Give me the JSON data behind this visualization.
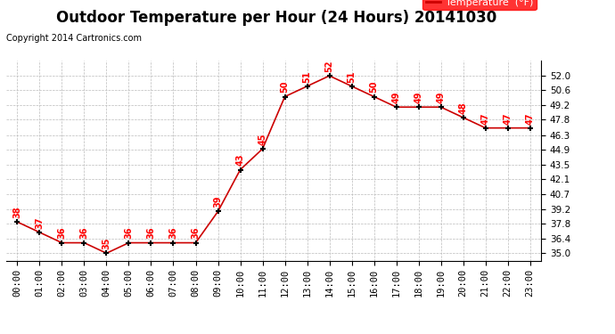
{
  "title": "Outdoor Temperature per Hour (24 Hours) 20141030",
  "copyright": "Copyright 2014 Cartronics.com",
  "legend_label": "Temperature  (°F)",
  "hours": [
    0,
    1,
    2,
    3,
    4,
    5,
    6,
    7,
    8,
    9,
    10,
    11,
    12,
    13,
    14,
    15,
    16,
    17,
    18,
    19,
    20,
    21,
    22,
    23
  ],
  "temps": [
    38,
    37,
    36,
    36,
    35,
    36,
    36,
    36,
    36,
    39,
    43,
    45,
    50,
    51,
    52,
    51,
    50,
    49,
    49,
    49,
    48,
    47,
    47,
    47
  ],
  "x_labels": [
    "00:00",
    "01:00",
    "02:00",
    "03:00",
    "04:00",
    "05:00",
    "06:00",
    "07:00",
    "08:00",
    "09:00",
    "10:00",
    "11:00",
    "12:00",
    "13:00",
    "14:00",
    "15:00",
    "16:00",
    "17:00",
    "18:00",
    "19:00",
    "20:00",
    "21:00",
    "22:00",
    "23:00"
  ],
  "yticks": [
    35.0,
    36.4,
    37.8,
    39.2,
    40.7,
    42.1,
    43.5,
    44.9,
    46.3,
    47.8,
    49.2,
    50.6,
    52.0
  ],
  "ylim": [
    34.3,
    53.5
  ],
  "xlim": [
    -0.5,
    23.5
  ],
  "line_color": "#cc0000",
  "marker_color": "black",
  "annotation_color": "red",
  "background_color": "white",
  "grid_color": "#bbbbbb",
  "title_fontsize": 12,
  "tick_fontsize": 7.5,
  "annotation_fontsize": 7,
  "copyright_fontsize": 7
}
